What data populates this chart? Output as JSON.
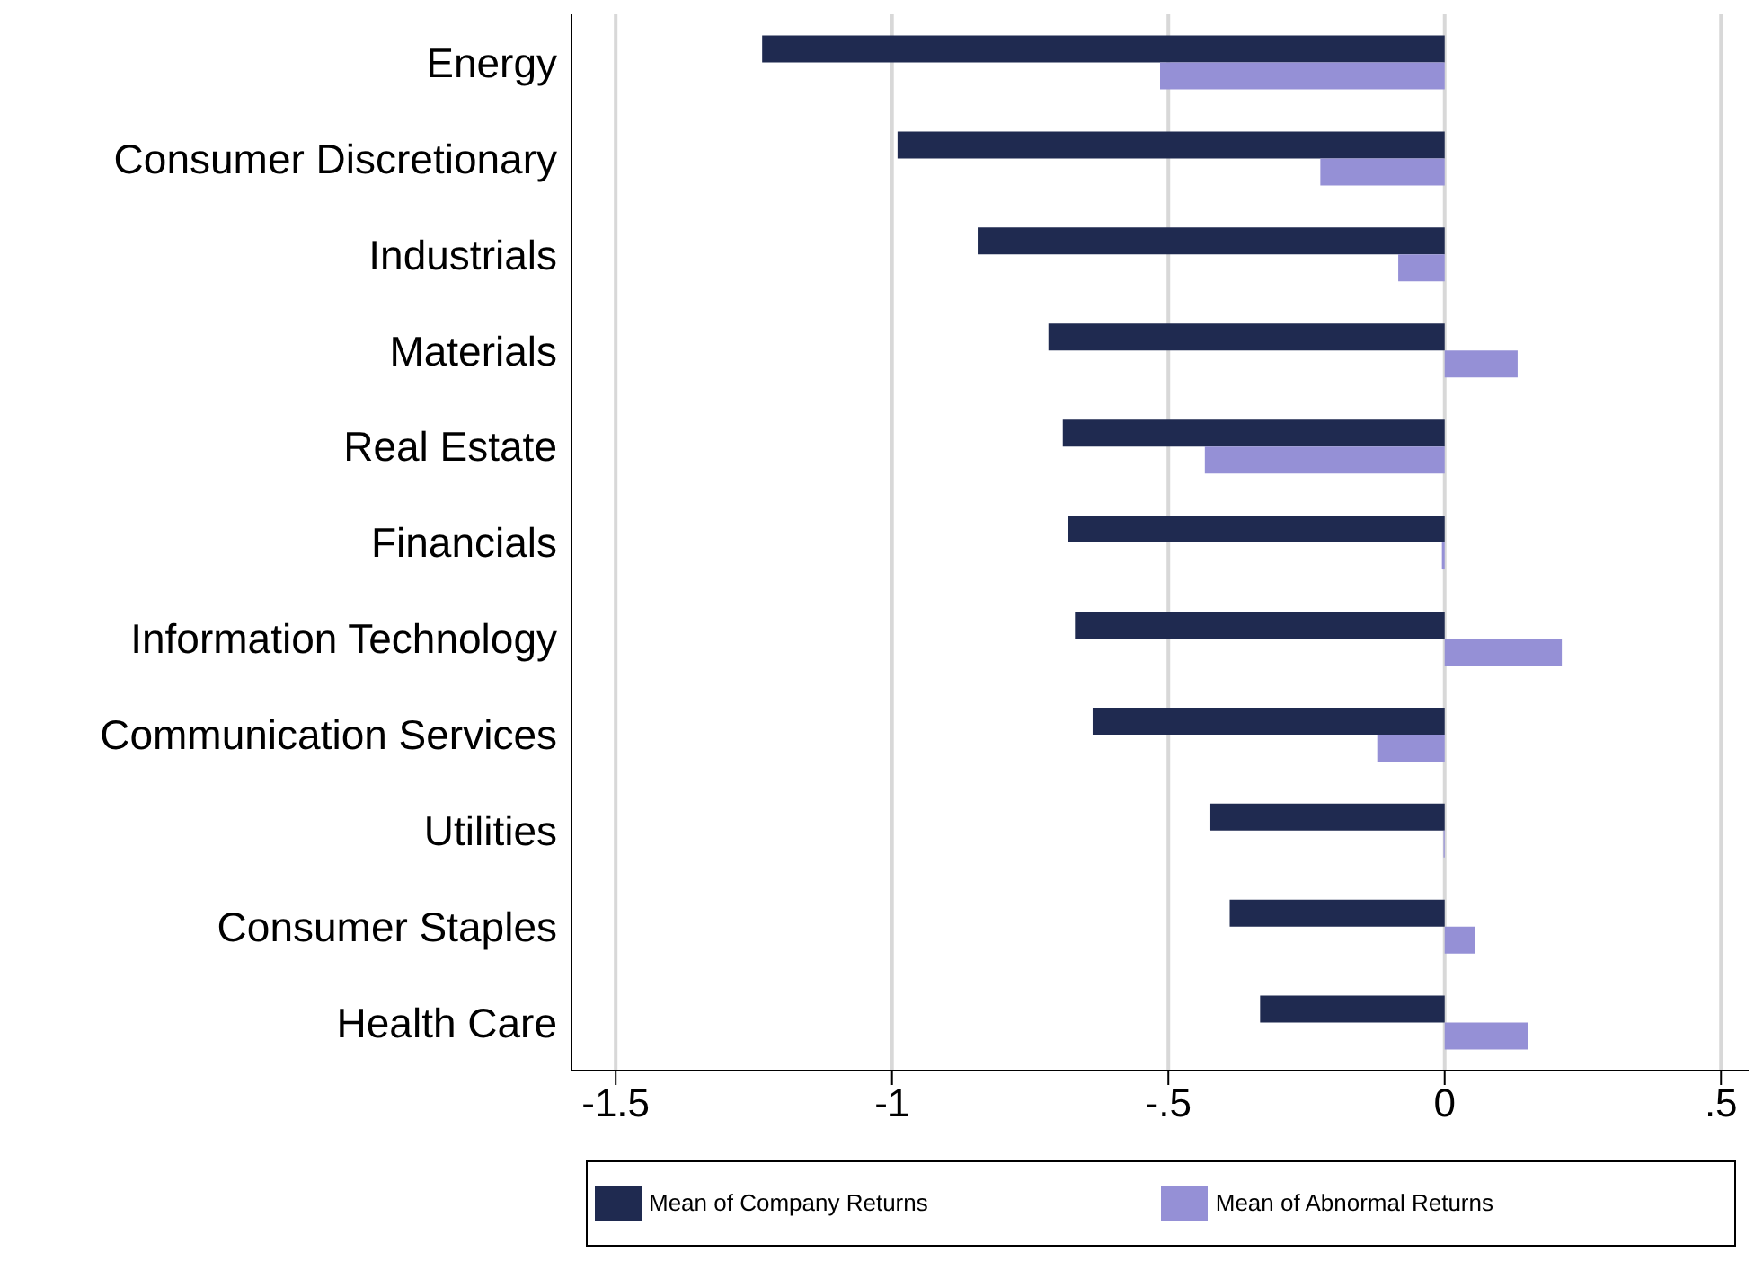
{
  "chart_data": {
    "type": "bar",
    "orientation": "horizontal",
    "categories": [
      "Energy",
      "Consumer Discretionary",
      "Industrials",
      "Materials",
      "Real Estate",
      "Financials",
      "Information Technology",
      "Communication Services",
      "Utilities",
      "Consumer Staples",
      "Health Care"
    ],
    "series": [
      {
        "name": "Mean of Company Returns",
        "color": "#1f2a50",
        "values": [
          -1.235,
          -0.99,
          -0.845,
          -0.717,
          -0.691,
          -0.682,
          -0.669,
          -0.637,
          -0.424,
          -0.389,
          -0.334
        ]
      },
      {
        "name": "Mean of Abnormal Returns",
        "color": "#9590d6",
        "values": [
          -0.515,
          -0.225,
          -0.084,
          0.132,
          -0.434,
          -0.005,
          0.212,
          -0.122,
          -0.002,
          0.055,
          0.151
        ]
      }
    ],
    "xlim": [
      -1.58,
      0.55
    ],
    "xticks": [
      {
        "value": -1.5,
        "label": "-1.5"
      },
      {
        "value": -1,
        "label": "-1"
      },
      {
        "value": -0.5,
        "label": "-.5"
      },
      {
        "value": 0,
        "label": "0"
      },
      {
        "value": 0.5,
        "label": ".5"
      }
    ],
    "grid": "x",
    "legend": "bottom"
  }
}
